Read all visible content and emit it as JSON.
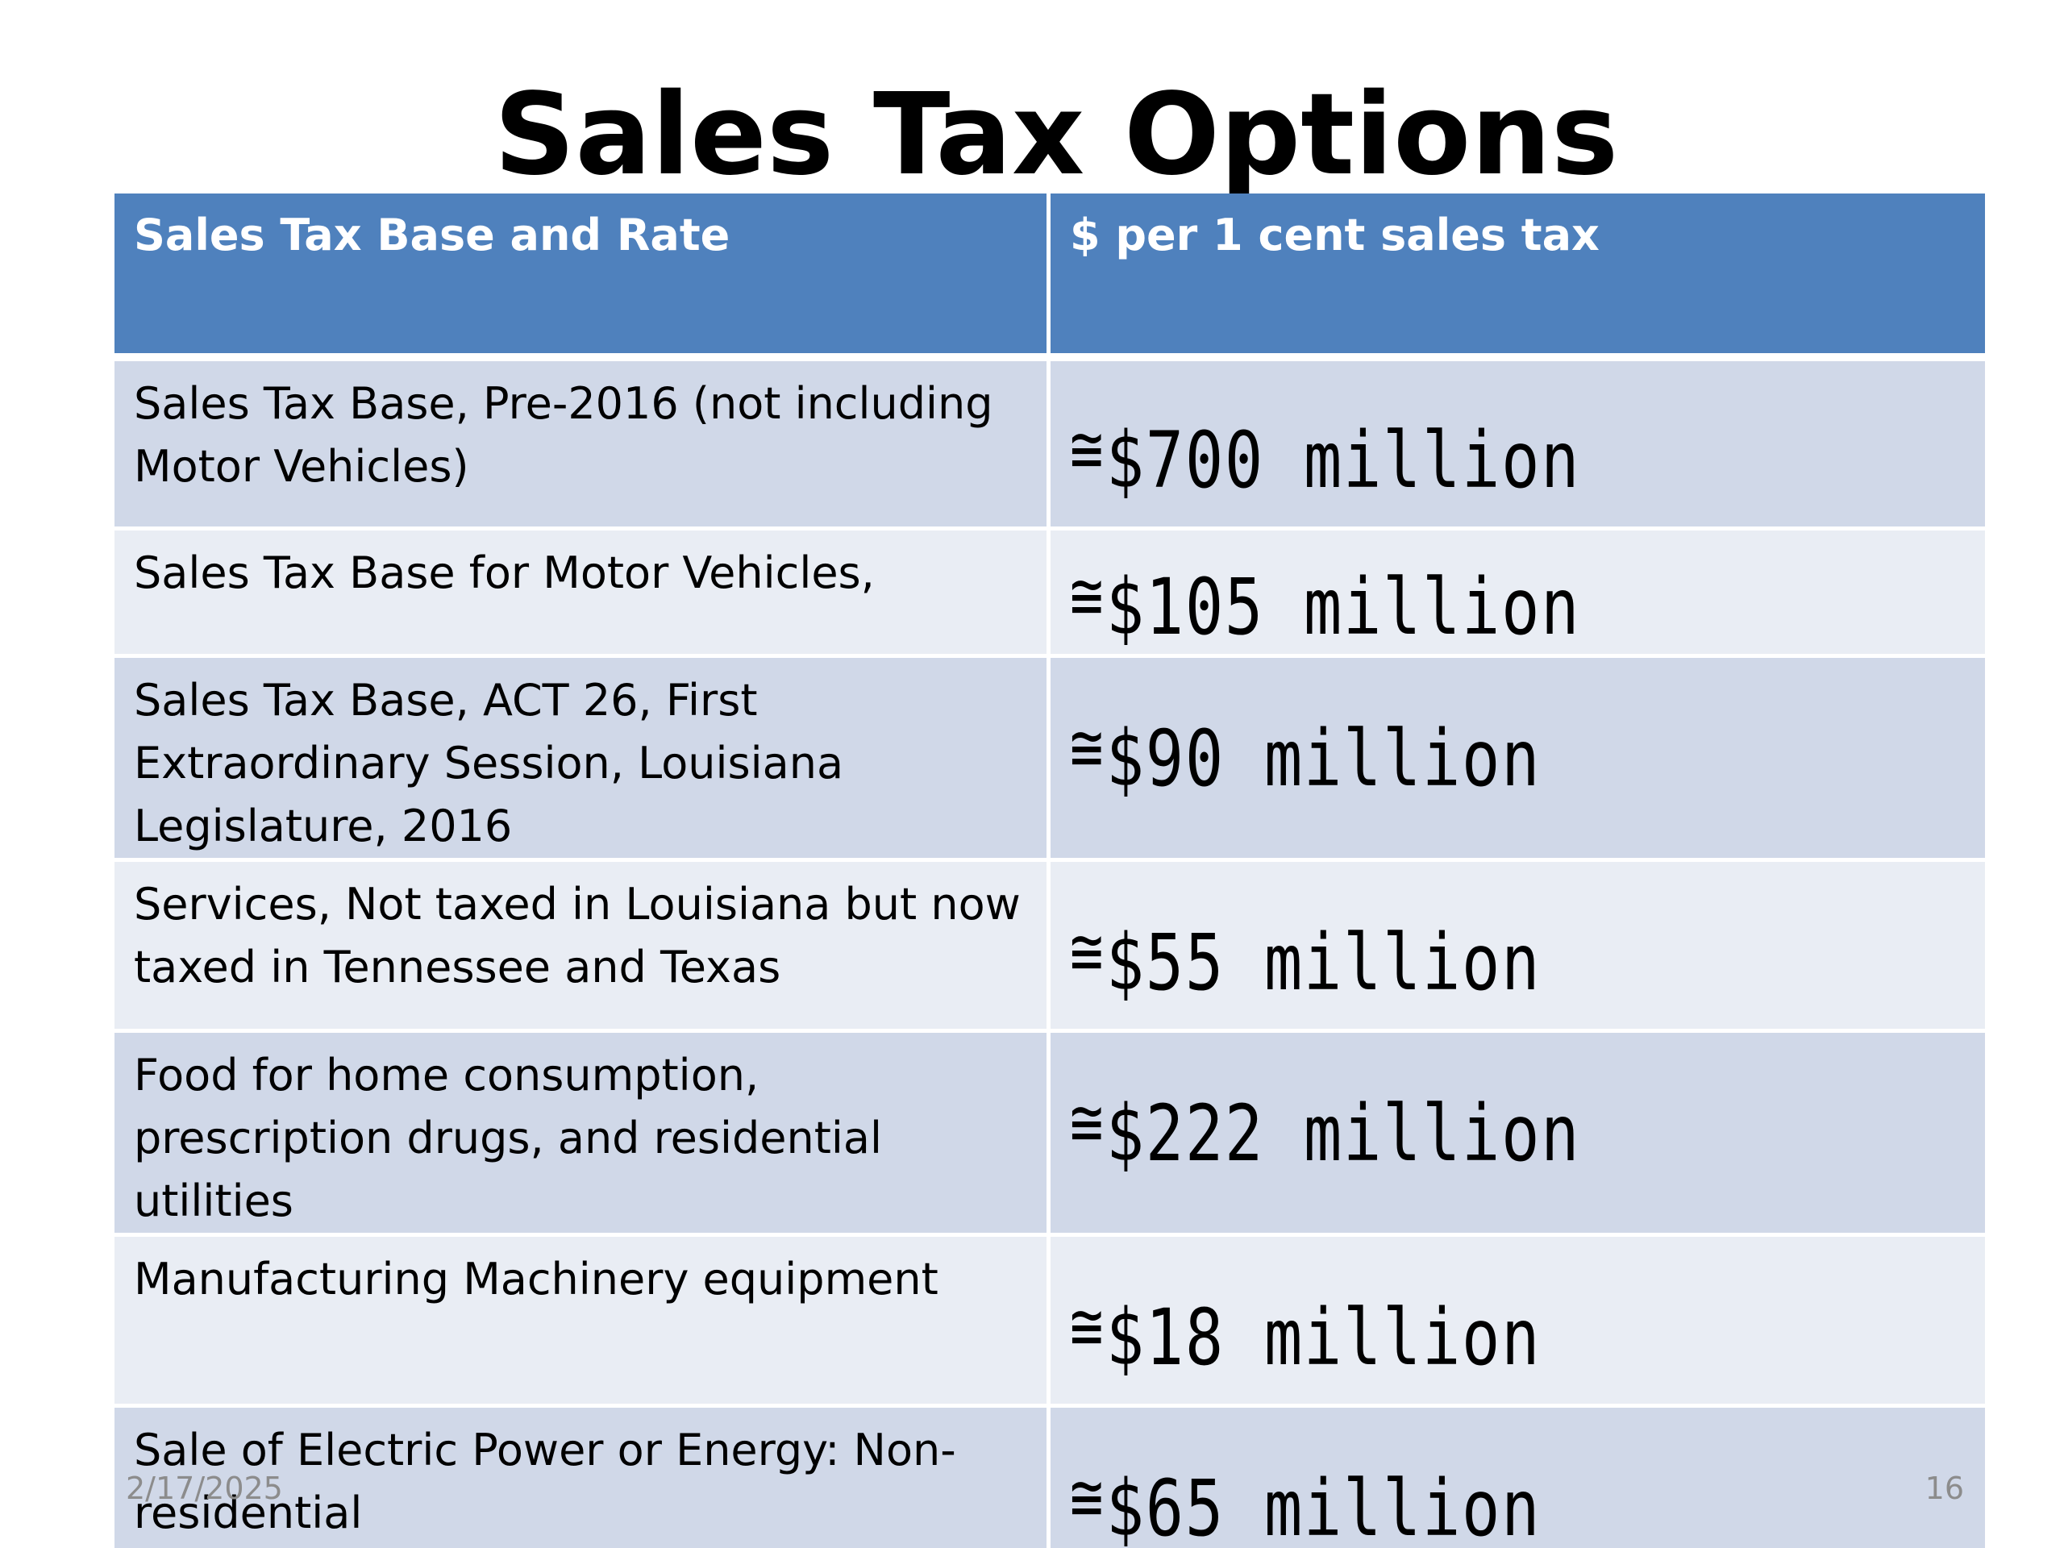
{
  "slide": {
    "title": "Sales Tax Options",
    "date": "2/17/2025",
    "page_number": "16"
  },
  "table": {
    "headers": [
      "Sales Tax Base and Rate",
      "$ per 1 cent sales tax"
    ],
    "approx_symbol": "≅",
    "rows": [
      {
        "base": "Sales Tax Base, Pre-2016 (not including Motor Vehicles)",
        "value": "$700 million"
      },
      {
        "base": "Sales Tax Base for Motor Vehicles,",
        "value": "$105 million"
      },
      {
        "base": "Sales Tax Base, ACT 26, First Extraordinary Session, Louisiana Legislature, 2016",
        "value": "$90 million"
      },
      {
        "base": "Services, Not taxed in Louisiana but now taxed in Tennessee and Texas",
        "value": "$55 million"
      },
      {
        "base": "Food for home consumption, prescription drugs, and residential utilities",
        "value": "$222 million"
      },
      {
        "base": "Manufacturing Machinery equipment",
        "value": "$18 million"
      },
      {
        "base": "Sale of Electric Power or Energy: Non-residential",
        "value": "$65 million"
      }
    ]
  },
  "colors": {
    "header_bg": "#4f81bd",
    "row_dark": "#d0d8e8",
    "row_light": "#e9edf4"
  }
}
